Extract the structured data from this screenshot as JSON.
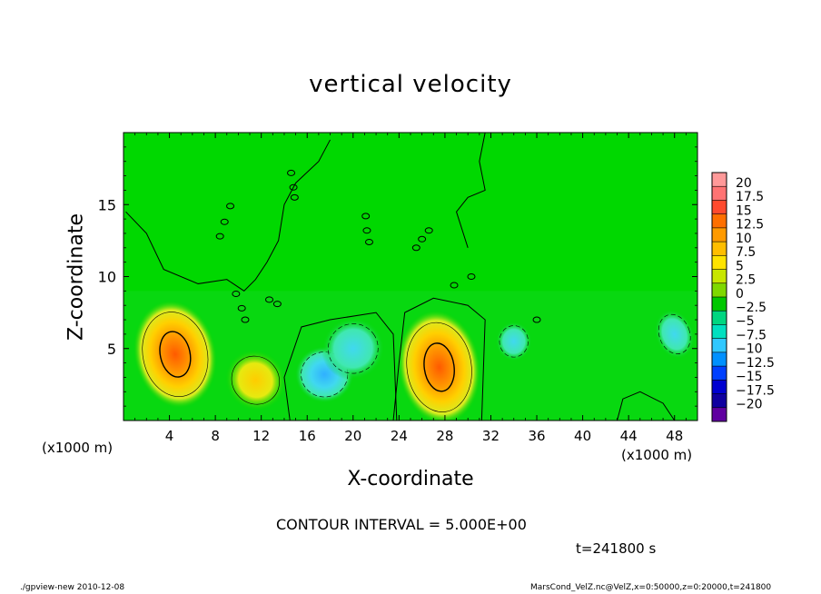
{
  "chart_data": {
    "type": "heatmap",
    "title": "vertical velocity",
    "xlabel": "X-coordinate",
    "ylabel": "Z-coordinate",
    "x_unit_label": "(x1000 m)",
    "x_unit_label_right": "(x1000 m)",
    "xlim": [
      0,
      50
    ],
    "ylim": [
      0,
      20
    ],
    "x_ticks": [
      4,
      8,
      12,
      16,
      20,
      24,
      28,
      32,
      36,
      40,
      44,
      48
    ],
    "y_ticks": [
      5,
      10,
      15
    ],
    "contour_interval_text": "CONTOUR INTERVAL = 5.000E+00",
    "time_text": "t=241800 s",
    "colorbar": {
      "levels": [
        "20",
        "17.5",
        "15",
        "12.5",
        "10",
        "7.5",
        "5",
        "2.5",
        "0",
        "-2.5",
        "-5",
        "-7.5",
        "-10",
        "-12.5",
        "-15",
        "-17.5",
        "-20"
      ],
      "colors": [
        "#ff9999",
        "#ff7373",
        "#ff4a2e",
        "#ff6f00",
        "#ff9a00",
        "#ffbe00",
        "#ffe400",
        "#c8e600",
        "#7fd800",
        "#00c800",
        "#00d680",
        "#00e0c0",
        "#30c8ff",
        "#0090ff",
        "#0040ff",
        "#0000d0",
        "#1000a0",
        "#6000a0"
      ]
    },
    "features": [
      {
        "kind": "updraft",
        "x": 4.5,
        "z": 4.6,
        "peak": 12.5
      },
      {
        "kind": "updraft",
        "x": 11.5,
        "z": 2.8,
        "peak": 7.5
      },
      {
        "kind": "downdraft",
        "x": 17.5,
        "z": 3.2,
        "peak": -7.5
      },
      {
        "kind": "downdraft",
        "x": 20.0,
        "z": 5.0,
        "peak": -5
      },
      {
        "kind": "updraft",
        "x": 27.5,
        "z": 3.7,
        "peak": 12.5
      },
      {
        "kind": "downdraft",
        "x": 48.0,
        "z": 6.0,
        "peak": -5
      },
      {
        "kind": "downdraft",
        "x": 34.0,
        "z": 5.5,
        "peak": -2.5
      }
    ]
  },
  "footer": {
    "left": "./gpview-new  2010-12-08",
    "right": "MarsCond_VelZ.nc@VelZ,x=0:50000,z=0:20000,t=241800"
  }
}
